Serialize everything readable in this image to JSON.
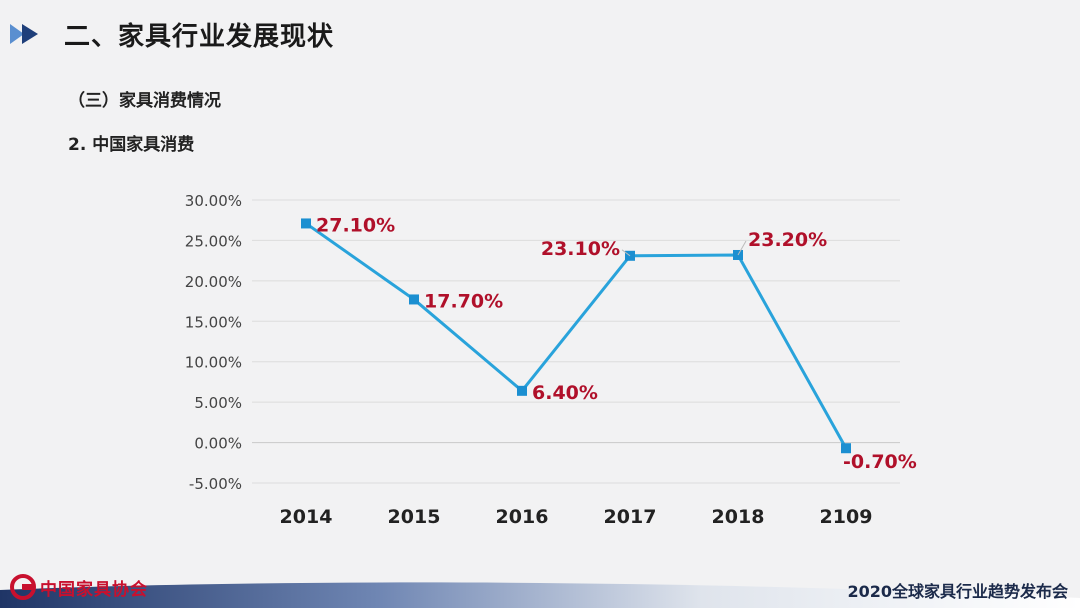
{
  "header": {
    "title": "二、家具行业发展现状",
    "section": "（三）家具消费情况",
    "subsection": "2. 中国家具消费"
  },
  "chart_data": {
    "type": "line",
    "categories": [
      "2014",
      "2015",
      "2016",
      "2017",
      "2018",
      "2109"
    ],
    "series": [
      {
        "values": [
          27.1,
          17.7,
          6.4,
          23.1,
          23.2,
          -0.7
        ]
      }
    ],
    "data_labels": [
      "27.10%",
      "17.70%",
      "6.40%",
      "23.10%",
      "23.20%",
      "-0.70%"
    ],
    "y_ticks": [
      "30.00%",
      "25.00%",
      "20.00%",
      "15.00%",
      "10.00%",
      "5.00%",
      "0.00%",
      "-5.00%"
    ],
    "ylim": [
      -5,
      30
    ],
    "y_step": 5,
    "grid": true,
    "line_color": "#29a3db",
    "marker_color": "#1b8fd1",
    "label_color": "#b0102a"
  },
  "footer": {
    "logo_text": "中国家具协会",
    "event": "2020全球家具行业趋势发布会"
  }
}
